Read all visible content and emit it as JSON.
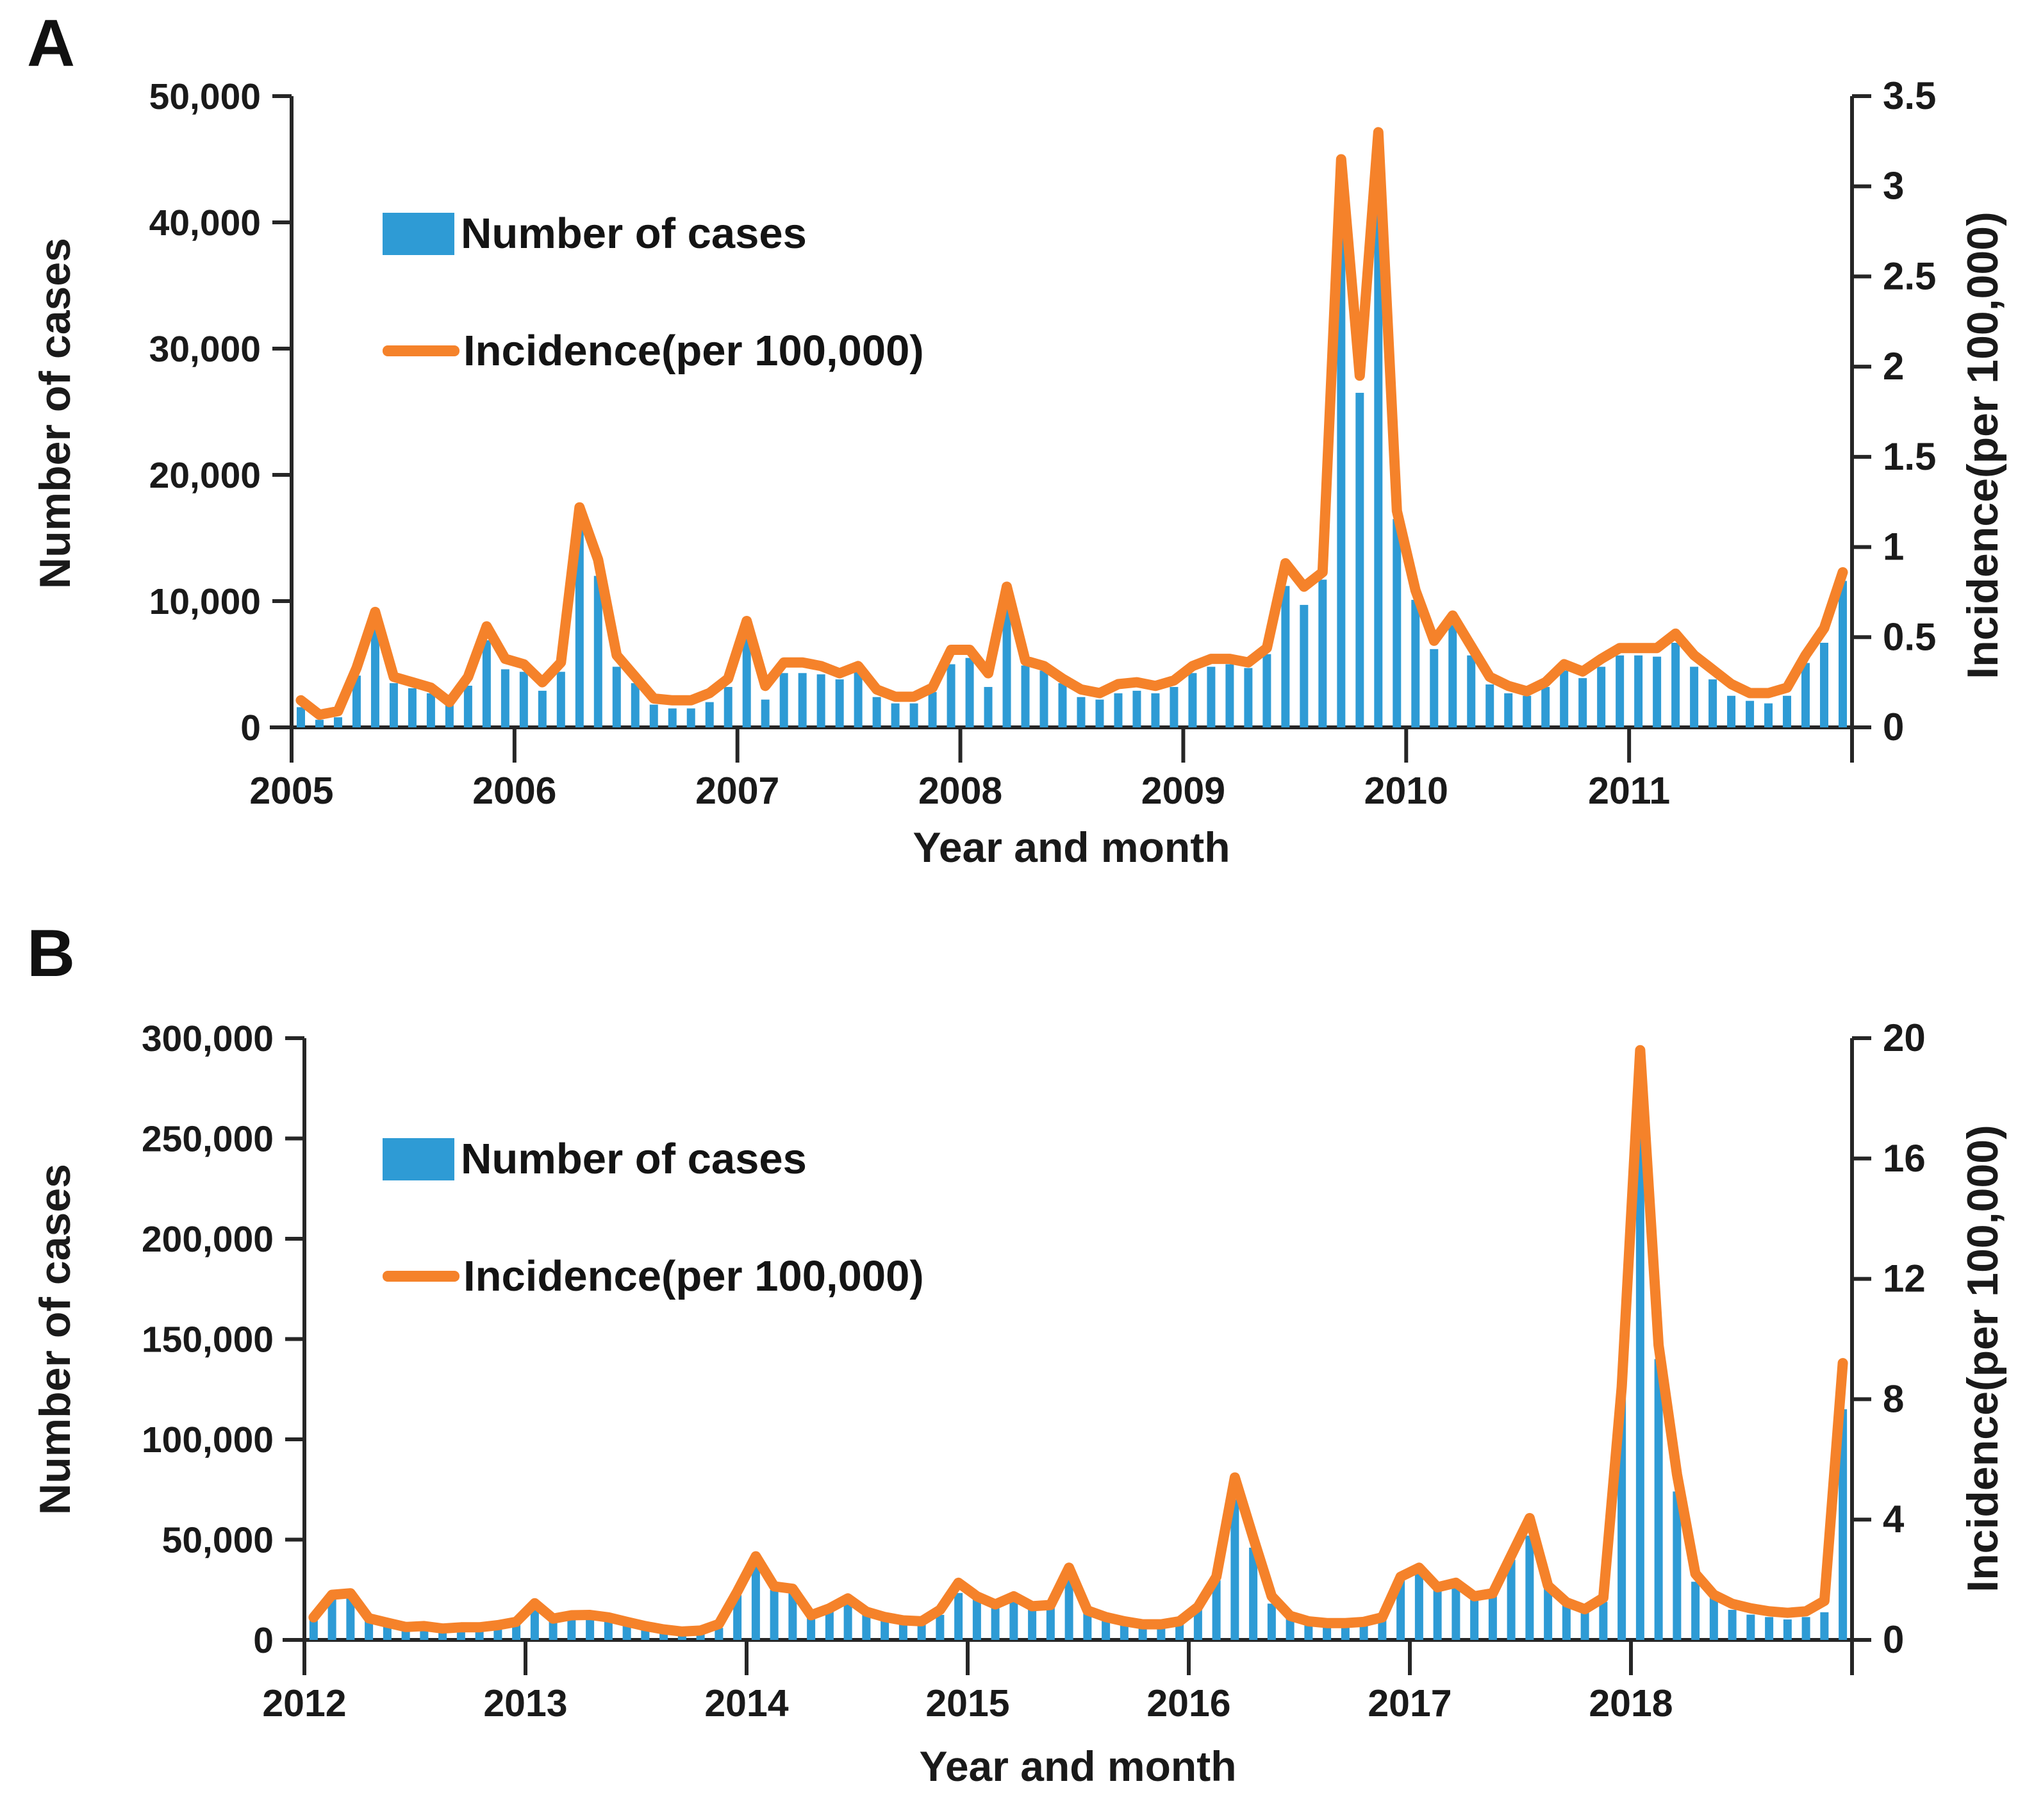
{
  "page": {
    "background": "#ffffff"
  },
  "colors": {
    "bar": "#2E9BD5",
    "line": "#F5822A",
    "text": "#1a1a1a",
    "axis": "#262626"
  },
  "chart_data": [
    {
      "type": "bar+line",
      "panel_label": "A",
      "title": "",
      "xlabel": "Year and month",
      "ylabel_left": "Number of cases",
      "ylabel_right": "Incidence(per 100,000)",
      "legend": {
        "bars": "Number of cases",
        "line": "Incidence(per 100,000)"
      },
      "years": [
        "2005",
        "2006",
        "2007",
        "2008",
        "2009",
        "2010",
        "2011"
      ],
      "left_axis": {
        "min": 0,
        "max": 50000,
        "step": 10000,
        "tick_labels": [
          "0",
          "10,000",
          "20,000",
          "30,000",
          "40,000",
          "50,000"
        ]
      },
      "right_axis": {
        "min": 0,
        "max": 3.5,
        "step": 0.5,
        "tick_labels": [
          "0",
          "0.5",
          "1",
          "1.5",
          "2",
          "2.5",
          "3",
          "3.5"
        ]
      },
      "grid": false,
      "legend_position": "upper-left-inside",
      "series": [
        {
          "name": "Number of cases",
          "axis": "left",
          "kind": "bar",
          "values": [
            1600,
            600,
            800,
            4100,
            7800,
            3500,
            3100,
            2700,
            1800,
            3300,
            6900,
            4600,
            4400,
            2900,
            4400,
            15700,
            12000,
            4800,
            3500,
            1800,
            1500,
            1500,
            2000,
            3200,
            7000,
            2200,
            4300,
            4300,
            4200,
            3800,
            4500,
            2400,
            1900,
            1900,
            2800,
            5000,
            5500,
            3200,
            9400,
            4900,
            4500,
            3500,
            2400,
            2200,
            2700,
            2900,
            2700,
            3200,
            4300,
            4800,
            5000,
            4700,
            5800,
            11200,
            9700,
            11700,
            42000,
            26500,
            45500,
            16500,
            10100,
            6200,
            8100,
            5700,
            3400,
            2700,
            2500,
            3200,
            4500,
            3900,
            4800,
            5700,
            5700,
            5600,
            6700,
            4800,
            3800,
            2500,
            2100,
            1900,
            2500,
            5100,
            6700,
            11600
          ]
        },
        {
          "name": "Incidence(per 100,000)",
          "axis": "right",
          "kind": "line",
          "values": [
            0.15,
            0.07,
            0.09,
            0.33,
            0.64,
            0.28,
            0.25,
            0.22,
            0.14,
            0.28,
            0.56,
            0.38,
            0.35,
            0.25,
            0.36,
            1.22,
            0.93,
            0.4,
            0.28,
            0.16,
            0.15,
            0.15,
            0.19,
            0.27,
            0.59,
            0.23,
            0.36,
            0.36,
            0.34,
            0.3,
            0.34,
            0.21,
            0.17,
            0.17,
            0.22,
            0.43,
            0.43,
            0.3,
            0.78,
            0.37,
            0.34,
            0.27,
            0.21,
            0.19,
            0.24,
            0.25,
            0.23,
            0.26,
            0.34,
            0.38,
            0.38,
            0.36,
            0.44,
            0.91,
            0.78,
            0.86,
            3.15,
            1.95,
            3.3,
            1.2,
            0.76,
            0.48,
            0.62,
            0.45,
            0.28,
            0.23,
            0.2,
            0.25,
            0.35,
            0.31,
            0.38,
            0.44,
            0.44,
            0.44,
            0.52,
            0.4,
            0.32,
            0.24,
            0.19,
            0.19,
            0.22,
            0.4,
            0.55,
            0.86
          ]
        }
      ]
    },
    {
      "type": "bar+line",
      "panel_label": "B",
      "title": "",
      "xlabel": "Year and month",
      "ylabel_left": "Number of cases",
      "ylabel_right": "Incidence(per 100,000)",
      "legend": {
        "bars": "Number of cases",
        "line": "Incidence(per 100,000)"
      },
      "years": [
        "2012",
        "2013",
        "2014",
        "2015",
        "2016",
        "2017",
        "2018"
      ],
      "left_axis": {
        "min": 0,
        "max": 300000,
        "step": 50000,
        "tick_labels": [
          "0",
          "50,000",
          "100,000",
          "150,000",
          "200,000",
          "250,000",
          "300,000"
        ]
      },
      "right_axis": {
        "min": 0,
        "max": 20,
        "step": 4,
        "tick_labels": [
          "0",
          "4",
          "8",
          "12",
          "16",
          "20"
        ]
      },
      "grid": false,
      "legend_position": "upper-left-inside",
      "series": [
        {
          "name": "Number of cases",
          "axis": "left",
          "kind": "bar",
          "values": [
            9800,
            21200,
            21500,
            9800,
            7100,
            5400,
            4900,
            4400,
            4900,
            4900,
            6000,
            7600,
            16800,
            9200,
            10900,
            11400,
            9800,
            8200,
            6000,
            4400,
            3300,
            3800,
            6000,
            22300,
            38000,
            25000,
            24500,
            10900,
            14500,
            19100,
            12500,
            9800,
            8200,
            7600,
            12500,
            23400,
            20700,
            15800,
            20100,
            15800,
            16300,
            34000,
            13600,
            10300,
            8200,
            7100,
            7100,
            8200,
            15000,
            29700,
            70000,
            46000,
            18100,
            10800,
            7200,
            6500,
            6500,
            7200,
            10100,
            29700,
            34700,
            25000,
            27000,
            20000,
            22000,
            40000,
            52000,
            25600,
            17300,
            14000,
            19000,
            122000,
            260000,
            140000,
            74000,
            29000,
            22000,
            15000,
            12600,
            11400,
            10200,
            11400,
            13800,
            115000
          ]
        },
        {
          "name": "Incidence(per 100,000)",
          "axis": "right",
          "kind": "line",
          "values": [
            0.75,
            1.5,
            1.55,
            0.72,
            0.57,
            0.43,
            0.46,
            0.38,
            0.42,
            0.42,
            0.49,
            0.6,
            1.22,
            0.71,
            0.82,
            0.83,
            0.75,
            0.6,
            0.46,
            0.35,
            0.28,
            0.31,
            0.53,
            1.61,
            2.78,
            1.78,
            1.7,
            0.82,
            1.05,
            1.38,
            0.94,
            0.76,
            0.65,
            0.62,
            1.0,
            1.9,
            1.45,
            1.18,
            1.45,
            1.12,
            1.16,
            2.4,
            0.98,
            0.76,
            0.62,
            0.52,
            0.52,
            0.62,
            1.1,
            2.1,
            5.4,
            3.4,
            1.45,
            0.8,
            0.62,
            0.56,
            0.56,
            0.6,
            0.75,
            2.1,
            2.4,
            1.75,
            1.9,
            1.45,
            1.55,
            2.8,
            4.05,
            1.8,
            1.25,
            1.02,
            1.4,
            8.4,
            19.6,
            9.8,
            5.5,
            2.2,
            1.5,
            1.2,
            1.05,
            0.95,
            0.9,
            0.95,
            1.3,
            9.2
          ]
        }
      ]
    }
  ]
}
